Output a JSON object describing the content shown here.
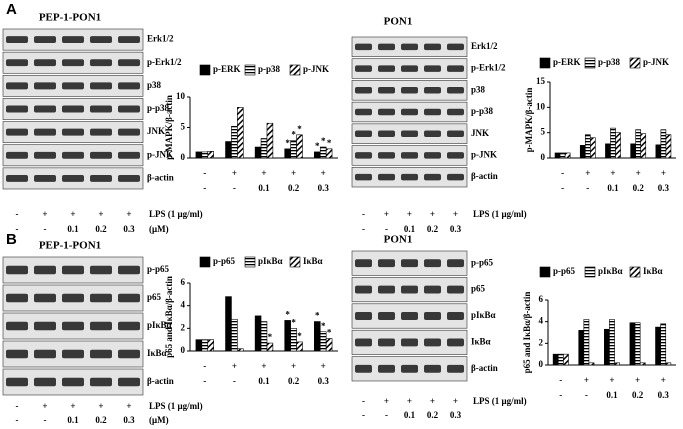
{
  "panels": [
    "A",
    "B"
  ],
  "blots": [
    {
      "title": "PEP-1-PON1",
      "rows": [
        "Erk1/2",
        "p-Erk1/2",
        "p38",
        "p-p38",
        "JNK",
        "p-JNK",
        "β-actin"
      ],
      "lps": [
        "-",
        "+",
        "+",
        "+",
        "+"
      ],
      "lps_label": "LPS (1 μg/ml)",
      "doses": [
        "-",
        "-",
        "0.1",
        "0.2",
        "0.3"
      ],
      "dose_label": "(μM)"
    },
    {
      "title": "PON1",
      "rows": [
        "Erk1/2",
        "p-Erk1/2",
        "p38",
        "p-p38",
        "JNK",
        "p-JNK",
        "β-actin"
      ],
      "lps": [
        "-",
        "+",
        "+",
        "+",
        "+"
      ],
      "lps_label": "LPS (1 μg/ml)",
      "doses": [
        "-",
        "-",
        "0.1",
        "0.2",
        "0.3"
      ]
    },
    {
      "title": "PEP-1-PON1",
      "rows": [
        "p-p65",
        "p65",
        "pIκBα",
        "IκBα",
        "β-actin"
      ],
      "lps": [
        "-",
        "+",
        "+",
        "+",
        "+"
      ],
      "lps_label": "LPS (1 μg/ml)",
      "doses": [
        "-",
        "-",
        "0.1",
        "0.2",
        "0.3"
      ],
      "dose_label": "(μM)"
    },
    {
      "title": "PON1",
      "rows": [
        "p-p65",
        "p65",
        "pIκBα",
        "IκBα",
        "β-actin"
      ],
      "lps": [
        "-",
        "+",
        "+",
        "+",
        "+"
      ],
      "lps_label": "LPS (1 μg/ml)",
      "doses": [
        "-",
        "-",
        "0.1",
        "0.2",
        "0.3"
      ]
    }
  ],
  "chart_data": [
    {
      "type": "bar",
      "y_label": "p-MAPK/β-actin",
      "lps": [
        "-",
        "+",
        "+",
        "+",
        "+"
      ],
      "categories": [
        "-",
        "-",
        "0.1",
        "0.2",
        "0.3"
      ],
      "ylim": [
        0,
        10
      ],
      "yticks": [
        0,
        5,
        10
      ],
      "series": [
        {
          "name": "p-ERK",
          "color": "#000000",
          "pattern": "solid",
          "values": [
            1,
            2.7,
            1.8,
            1.5,
            1.0
          ],
          "marks": [
            null,
            null,
            null,
            "*",
            "*"
          ]
        },
        {
          "name": "p-p38",
          "color": "#000000",
          "pattern": "horizontal",
          "values": [
            1,
            5.2,
            3.2,
            2.9,
            1.8
          ],
          "marks": [
            null,
            null,
            null,
            "*",
            "*"
          ]
        },
        {
          "name": "p-JNK",
          "color": "#000000",
          "pattern": "diagonal",
          "values": [
            1.1,
            8.3,
            5.7,
            3.8,
            1.5
          ],
          "marks": [
            null,
            null,
            null,
            "*",
            "*"
          ]
        }
      ]
    },
    {
      "type": "bar",
      "y_label": "p-MAPK/β-actin",
      "lps": [
        "-",
        "+",
        "+",
        "+",
        "+"
      ],
      "categories": [
        "-",
        "-",
        "0.1",
        "0.2",
        "0.3"
      ],
      "ylim": [
        0,
        15
      ],
      "yticks": [
        0,
        5,
        10,
        15
      ],
      "series": [
        {
          "name": "p-ERK",
          "color": "#000000",
          "pattern": "solid",
          "values": [
            1,
            2.5,
            2.8,
            2.8,
            2.6
          ]
        },
        {
          "name": "p-p38",
          "color": "#000000",
          "pattern": "horizontal",
          "values": [
            1,
            4.6,
            5.9,
            5.6,
            5.6
          ]
        },
        {
          "name": "p-JNK",
          "color": "#000000",
          "pattern": "diagonal",
          "values": [
            1,
            4.0,
            5.0,
            4.8,
            4.6
          ]
        }
      ]
    },
    {
      "type": "bar",
      "y_label": "p65 and IκBα/β-actin",
      "lps": [
        "-",
        "+",
        "+",
        "+",
        "+"
      ],
      "categories": [
        "-",
        "-",
        "0.1",
        "0.2",
        "0.3"
      ],
      "ylim": [
        0,
        6
      ],
      "yticks": [
        0,
        2,
        4,
        6
      ],
      "series": [
        {
          "name": "p-p65",
          "color": "#000000",
          "pattern": "solid",
          "values": [
            1,
            4.8,
            3.1,
            2.7,
            2.6
          ],
          "marks": [
            null,
            null,
            null,
            "*",
            "*"
          ]
        },
        {
          "name": "pIκBα",
          "color": "#000000",
          "pattern": "horizontal",
          "values": [
            1,
            2.8,
            2.6,
            2.0,
            1.7
          ],
          "marks": [
            null,
            null,
            null,
            "*",
            "*"
          ]
        },
        {
          "name": "IκBα",
          "color": "#000000",
          "pattern": "diagonal",
          "values": [
            1,
            0.2,
            0.7,
            0.8,
            1.1
          ],
          "marks": [
            null,
            null,
            "*",
            "*",
            "*"
          ]
        }
      ]
    },
    {
      "type": "bar",
      "y_label": "p65 and IκBα/β-actin",
      "lps": [
        "-",
        "+",
        "+",
        "+",
        "+"
      ],
      "categories": [
        "-",
        "-",
        "0.1",
        "0.2",
        "0.3"
      ],
      "ylim": [
        0,
        6
      ],
      "yticks": [
        0,
        2,
        4,
        6
      ],
      "series": [
        {
          "name": "p-p65",
          "color": "#000000",
          "pattern": "solid",
          "values": [
            1,
            3.2,
            3.3,
            3.9,
            3.5
          ]
        },
        {
          "name": "pIκBα",
          "color": "#000000",
          "pattern": "horizontal",
          "values": [
            1,
            4.2,
            4.2,
            3.9,
            3.8
          ]
        },
        {
          "name": "IκBα",
          "color": "#000000",
          "pattern": "diagonal",
          "values": [
            1,
            0.2,
            0.2,
            0.2,
            0.2
          ]
        }
      ]
    }
  ]
}
